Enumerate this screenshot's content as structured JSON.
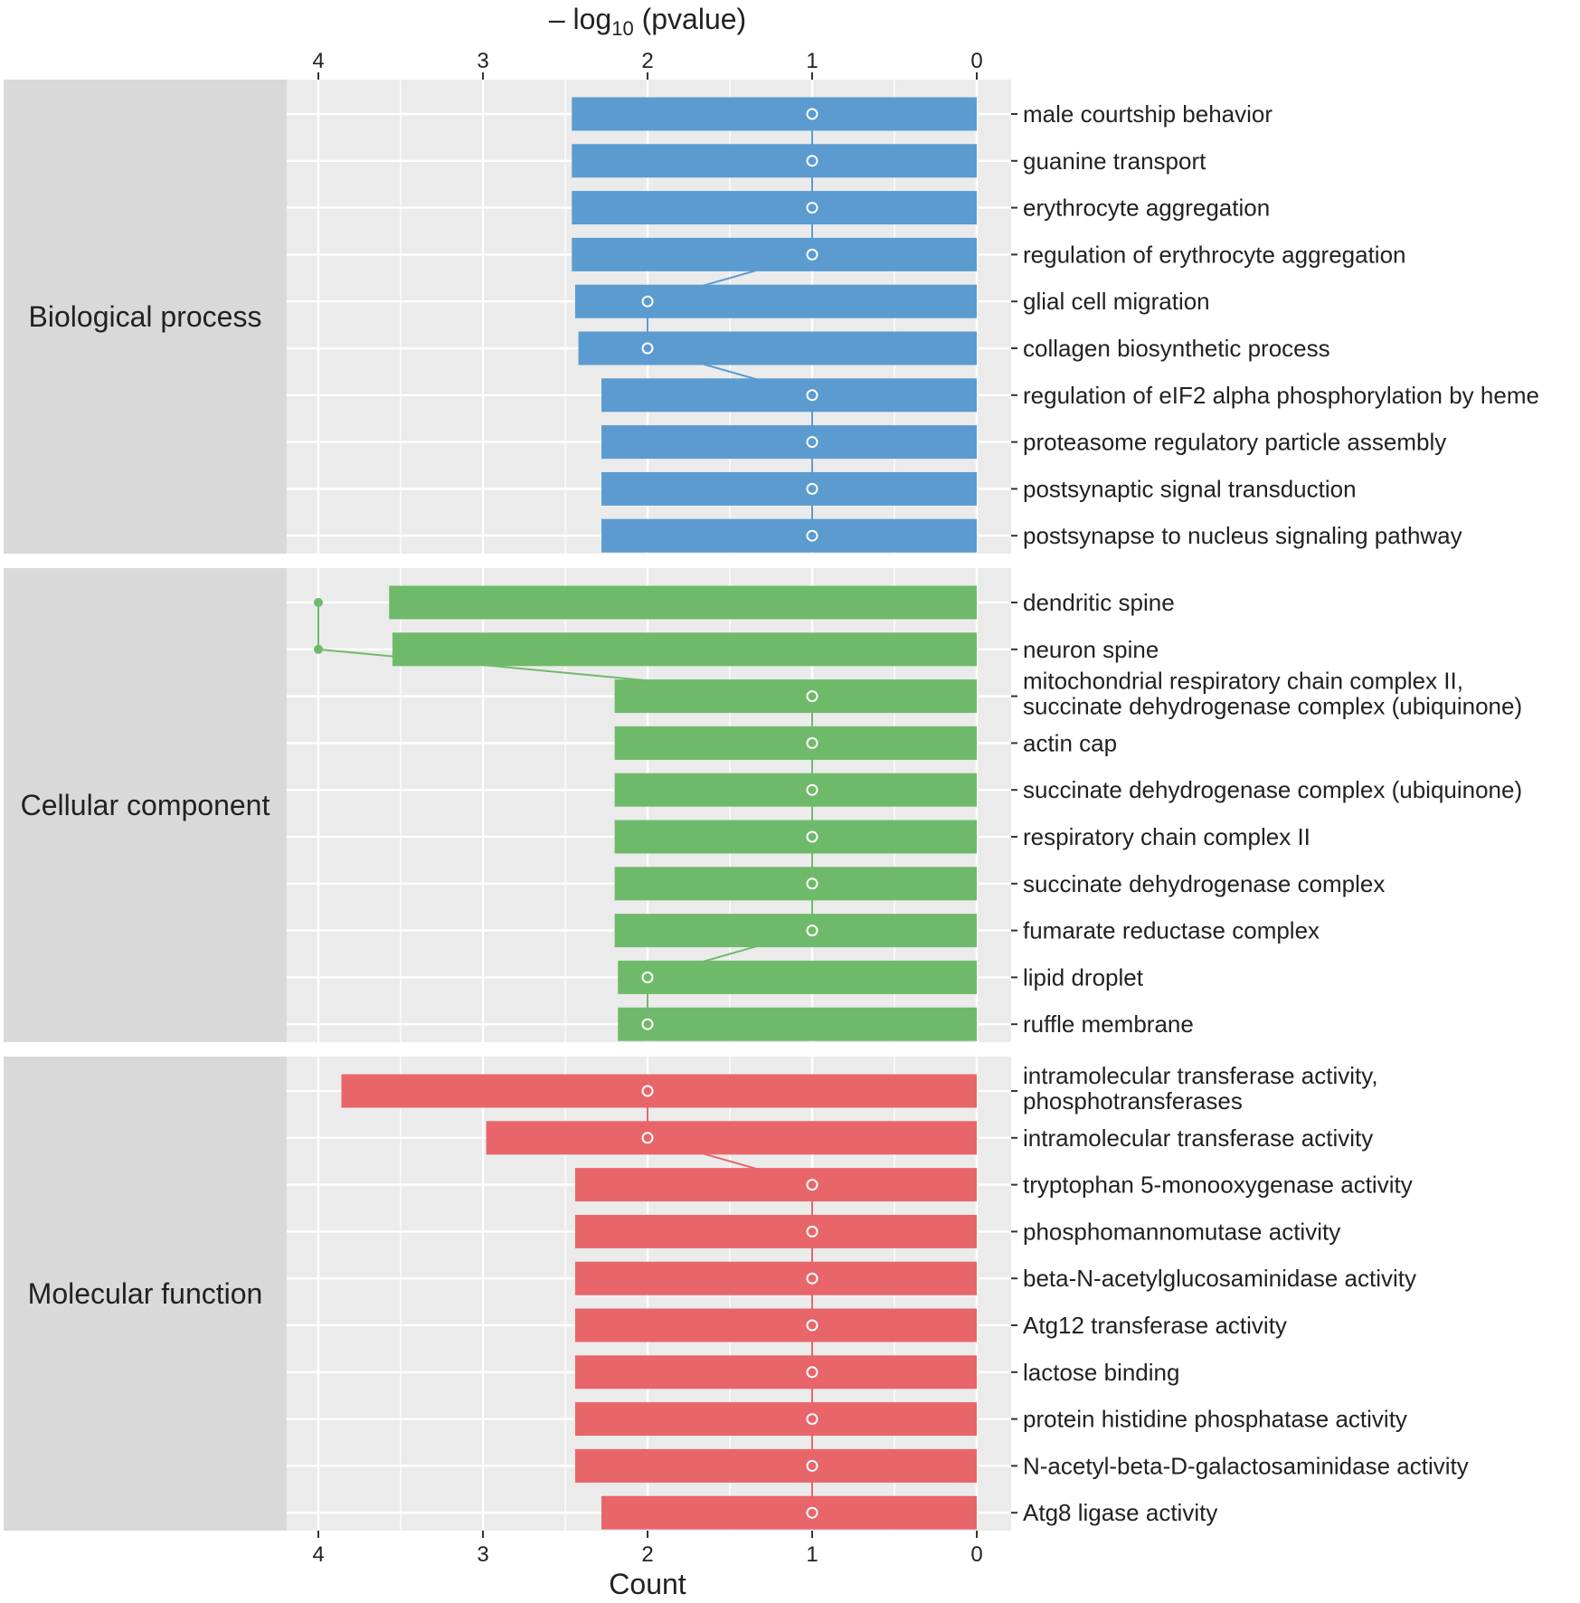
{
  "chart_data": {
    "type": "bar",
    "orientation": "horizontal",
    "axis_top_label": {
      "pre": "– log",
      "sub": "10",
      "post": " (pvalue)"
    },
    "axis_bottom_label": "Count",
    "xlim": [
      0,
      4.2
    ],
    "x_ticks": [
      "4",
      "3",
      "2",
      "1",
      "0"
    ],
    "x_reversed": true,
    "grid": true,
    "colors": {
      "Biological process": "#5b9bd0",
      "Cellular component": "#6fba6a",
      "Molecular function": "#e8656a",
      "panel_bg": "#ebebeb",
      "strip_bg": "#d9d9d9",
      "grid": "#ffffff"
    },
    "panels": [
      {
        "name": "Biological process",
        "terms": [
          "male courtship behavior",
          "guanine transport",
          "erythrocyte aggregation",
          "regulation of erythrocyte aggregation",
          "glial cell migration",
          "collagen biosynthetic process",
          "regulation of eIF2 alpha phosphorylation by heme",
          "proteasome regulatory particle assembly",
          "postsynaptic signal transduction",
          "postsynapse to nucleus signaling pathway"
        ],
        "neg_log10_pvalue": [
          2.46,
          2.46,
          2.46,
          2.46,
          2.44,
          2.42,
          2.28,
          2.28,
          2.28,
          2.28
        ],
        "count": [
          1,
          1,
          1,
          1,
          2,
          2,
          1,
          1,
          1,
          1
        ]
      },
      {
        "name": "Cellular component",
        "terms": [
          "dendritic spine",
          "neuron spine",
          [
            "mitochondrial respiratory chain complex II,",
            "succinate dehydrogenase complex (ubiquinone)"
          ],
          "actin cap",
          "succinate dehydrogenase complex (ubiquinone)",
          "respiratory chain complex II",
          "succinate dehydrogenase complex",
          "fumarate reductase complex",
          "lipid droplet",
          "ruffle membrane"
        ],
        "neg_log10_pvalue": [
          3.57,
          3.55,
          2.2,
          2.2,
          2.2,
          2.2,
          2.2,
          2.2,
          2.18,
          2.18
        ],
        "count": [
          4,
          4,
          1,
          1,
          1,
          1,
          1,
          1,
          2,
          2
        ]
      },
      {
        "name": "Molecular function",
        "terms": [
          [
            "intramolecular transferase activity,",
            "phosphotransferases"
          ],
          "intramolecular transferase activity",
          "tryptophan 5-monooxygenase activity",
          "phosphomannomutase activity",
          "beta-N-acetylglucosaminidase activity",
          "Atg12 transferase activity",
          "lactose binding",
          "protein histidine phosphatase activity",
          "N-acetyl-beta-D-galactosaminidase activity",
          "Atg8 ligase activity"
        ],
        "neg_log10_pvalue": [
          3.86,
          2.98,
          2.44,
          2.44,
          2.44,
          2.44,
          2.44,
          2.44,
          2.44,
          2.28
        ],
        "count": [
          2,
          2,
          1,
          1,
          1,
          1,
          1,
          1,
          1,
          1
        ]
      }
    ]
  }
}
